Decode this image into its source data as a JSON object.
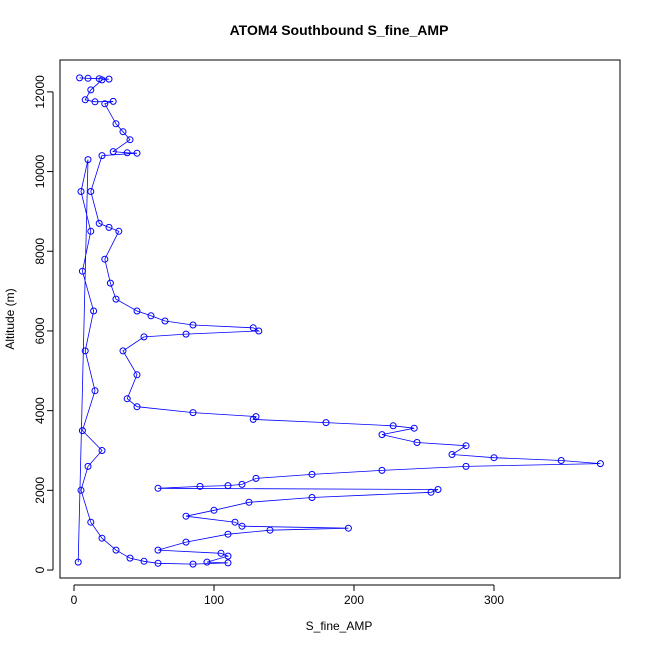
{
  "chart_data": {
    "type": "scatter",
    "title": "ATOM4 Southbound S_fine_AMP",
    "xlabel": "S_fine_AMP",
    "ylabel": "Altitude (m)",
    "xlim": [
      -10,
      390
    ],
    "ylim": [
      -200,
      12800
    ],
    "x_ticks": [
      0,
      100,
      200,
      300
    ],
    "y_ticks": [
      0,
      2000,
      4000,
      6000,
      8000,
      10000,
      12000
    ],
    "grid": false,
    "legend": "none",
    "marker": "open-circle",
    "connect_points": true,
    "color": "#0000ff",
    "series": [
      {
        "points": [
          [
            4,
            12350
          ],
          [
            10,
            12340
          ],
          [
            18,
            12330
          ],
          [
            25,
            12320
          ],
          [
            20,
            12300
          ],
          [
            12,
            12050
          ],
          [
            8,
            11800
          ],
          [
            15,
            11750
          ],
          [
            28,
            11760
          ],
          [
            22,
            11700
          ],
          [
            30,
            11200
          ],
          [
            35,
            11000
          ],
          [
            40,
            10800
          ],
          [
            28,
            10500
          ],
          [
            38,
            10470
          ],
          [
            45,
            10460
          ],
          [
            20,
            10400
          ],
          [
            12,
            9500
          ],
          [
            18,
            8700
          ],
          [
            25,
            8600
          ],
          [
            32,
            8500
          ],
          [
            22,
            7800
          ],
          [
            26,
            7200
          ],
          [
            30,
            6800
          ],
          [
            45,
            6500
          ],
          [
            55,
            6380
          ],
          [
            65,
            6250
          ],
          [
            85,
            6150
          ],
          [
            128,
            6080
          ],
          [
            132,
            6000
          ],
          [
            80,
            5920
          ],
          [
            50,
            5850
          ],
          [
            35,
            5500
          ],
          [
            45,
            4900
          ],
          [
            38,
            4300
          ],
          [
            45,
            4100
          ],
          [
            85,
            3950
          ],
          [
            130,
            3850
          ],
          [
            128,
            3780
          ],
          [
            180,
            3700
          ],
          [
            228,
            3620
          ],
          [
            243,
            3560
          ],
          [
            220,
            3400
          ],
          [
            245,
            3200
          ],
          [
            280,
            3120
          ],
          [
            270,
            2900
          ],
          [
            300,
            2820
          ],
          [
            348,
            2750
          ],
          [
            376,
            2670
          ],
          [
            280,
            2600
          ],
          [
            220,
            2500
          ],
          [
            170,
            2400
          ],
          [
            130,
            2300
          ],
          [
            120,
            2150
          ],
          [
            110,
            2120
          ],
          [
            90,
            2100
          ],
          [
            60,
            2050
          ],
          [
            260,
            2020
          ],
          [
            255,
            1950
          ],
          [
            170,
            1820
          ],
          [
            125,
            1700
          ],
          [
            100,
            1500
          ],
          [
            80,
            1350
          ],
          [
            115,
            1200
          ],
          [
            120,
            1100
          ],
          [
            196,
            1050
          ],
          [
            140,
            1000
          ],
          [
            110,
            900
          ],
          [
            80,
            700
          ],
          [
            60,
            500
          ],
          [
            105,
            420
          ],
          [
            110,
            350
          ],
          [
            95,
            200
          ],
          [
            110,
            180
          ],
          [
            85,
            150
          ],
          [
            60,
            170
          ],
          [
            50,
            220
          ],
          [
            40,
            300
          ],
          [
            30,
            500
          ],
          [
            20,
            800
          ],
          [
            12,
            1200
          ],
          [
            5,
            2000
          ],
          [
            10,
            2600
          ],
          [
            20,
            3000
          ],
          [
            6,
            3500
          ],
          [
            15,
            4500
          ],
          [
            8,
            5500
          ],
          [
            14,
            6500
          ],
          [
            6,
            7500
          ],
          [
            12,
            8500
          ],
          [
            5,
            9500
          ],
          [
            10,
            10300
          ],
          [
            3,
            200
          ]
        ]
      }
    ]
  }
}
